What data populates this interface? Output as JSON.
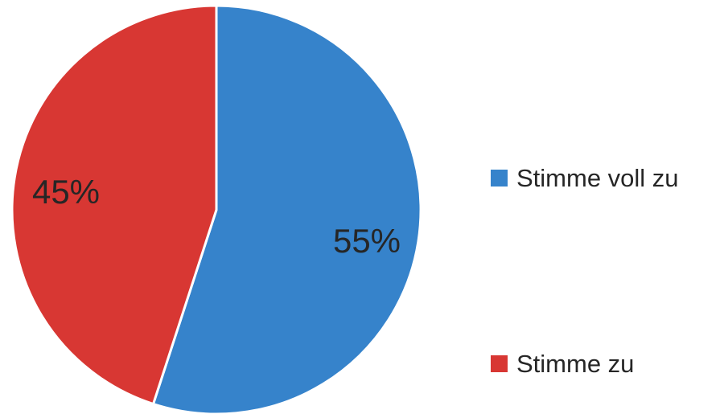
{
  "chart_data": {
    "type": "pie",
    "categories": [
      "Stimme voll zu",
      "Stimme zu"
    ],
    "values": [
      55,
      45
    ],
    "value_labels": [
      "55%",
      "45%"
    ],
    "colors": [
      "#3683CB",
      "#D83733"
    ],
    "start_angle_deg": 0,
    "direction": "clockwise",
    "legend_position": "right"
  }
}
